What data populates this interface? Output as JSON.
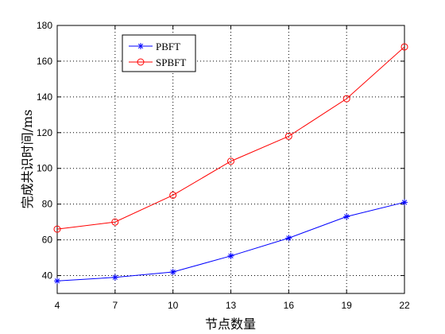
{
  "chart_data": {
    "type": "line",
    "x": [
      4,
      7,
      10,
      13,
      16,
      19,
      22
    ],
    "series": [
      {
        "name": "PBFT",
        "values": [
          37,
          39,
          42,
          51,
          61,
          73,
          81
        ],
        "color": "#0000ff",
        "marker": "star"
      },
      {
        "name": "SPBFT",
        "values": [
          66,
          70,
          85,
          104,
          118,
          139,
          168
        ],
        "color": "#ff0000",
        "marker": "circle"
      }
    ],
    "xlabel": "节点数量",
    "ylabel": "完成共识时间/ms",
    "xlim": [
      4,
      22
    ],
    "ylim": [
      30,
      180
    ],
    "xticks": [
      "4",
      "7",
      "10",
      "13",
      "16",
      "19",
      "22"
    ],
    "yticks": [
      "40",
      "60",
      "80",
      "100",
      "120",
      "140",
      "160",
      "180"
    ],
    "grid": true,
    "legend": "top-left"
  }
}
